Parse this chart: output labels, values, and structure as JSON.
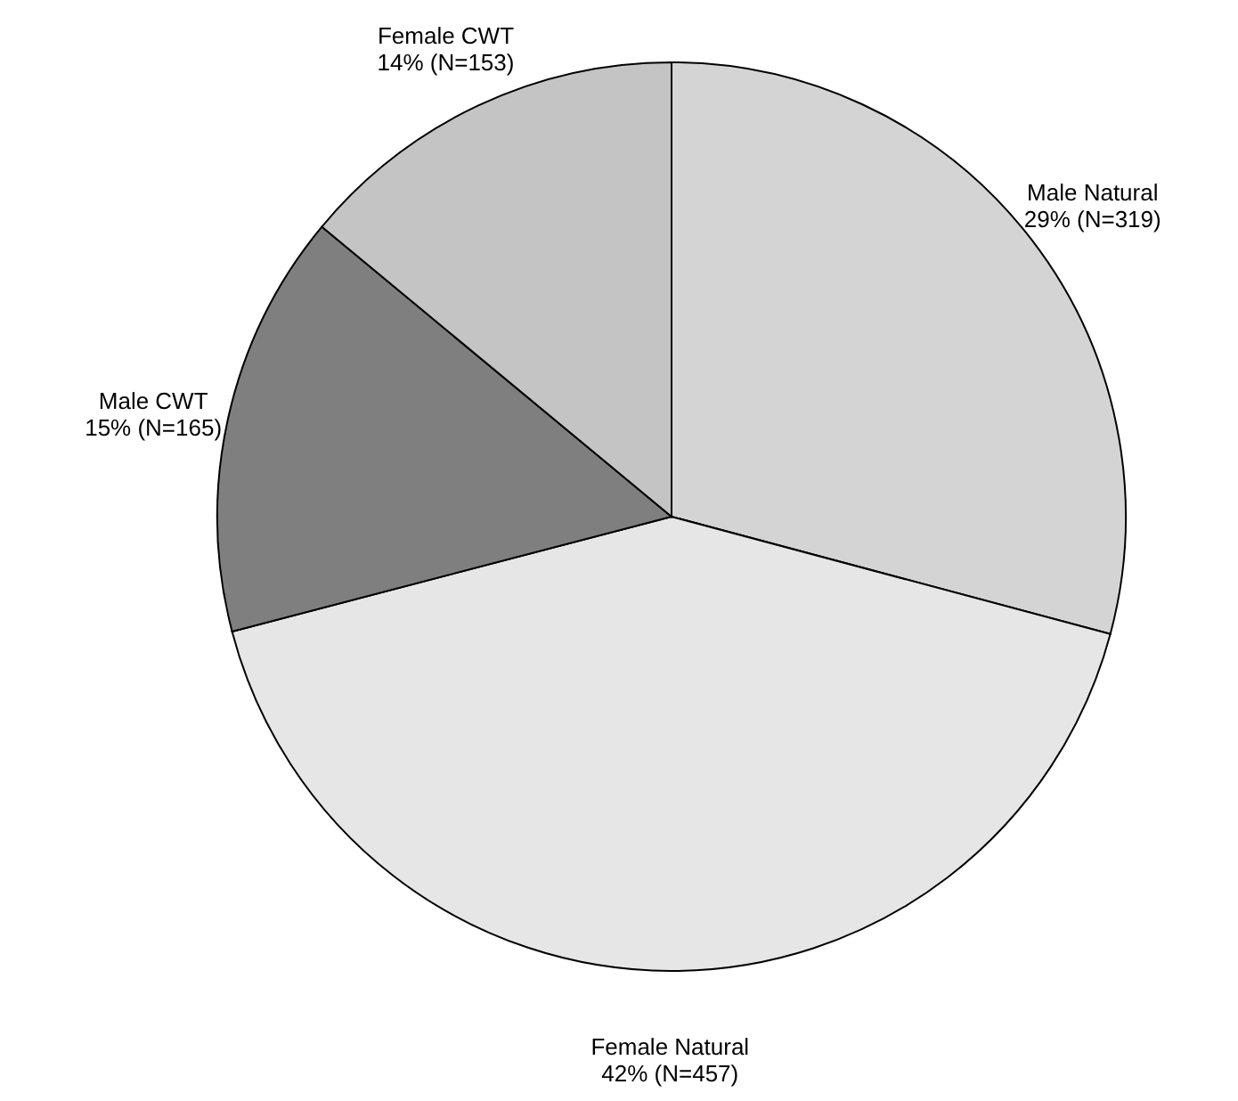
{
  "chart_data": {
    "type": "pie",
    "categories": [
      "Male Natural",
      "Female Natural",
      "Male CWT",
      "Female CWT"
    ],
    "values": [
      319,
      457,
      165,
      153
    ],
    "value_labels": [
      "29% (N=319)",
      "42% (N=457)",
      "15% (N=165)",
      "14% (N=153)"
    ],
    "colors": [
      "#d4d4d4",
      "#e6e6e6",
      "#7f7f7f",
      "#c4c4c4"
    ]
  }
}
